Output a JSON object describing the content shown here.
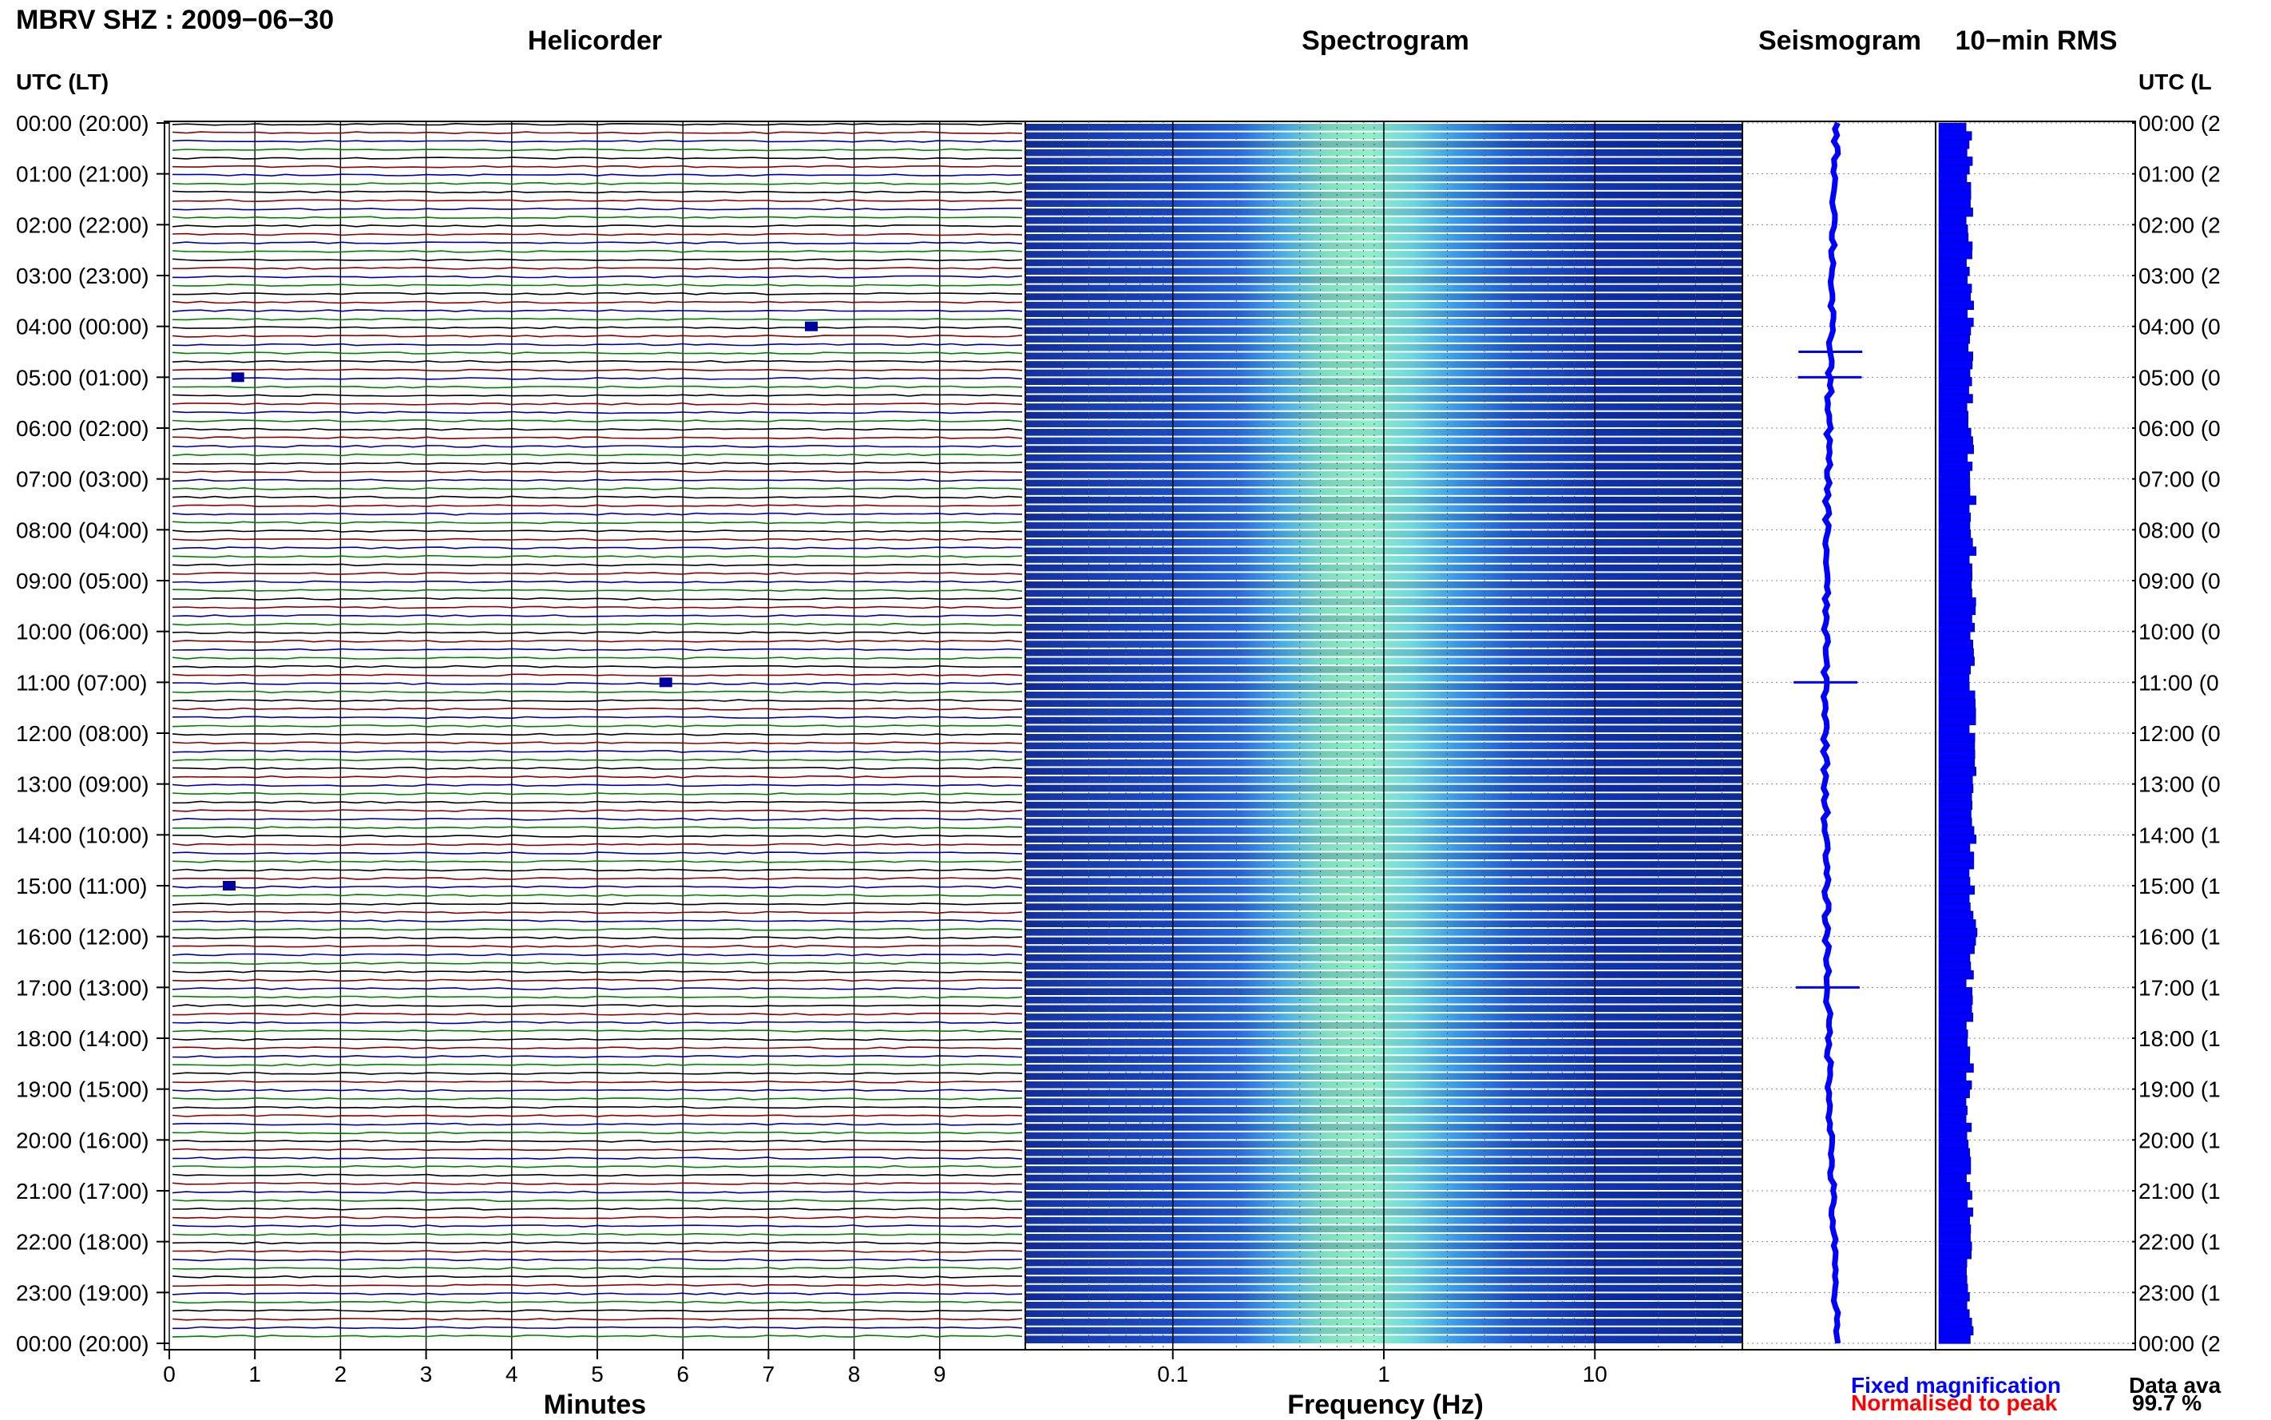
{
  "header": {
    "station_title": "MBRV SHZ : 2009−06−30",
    "panel_titles": [
      "Helicorder",
      "Spectrogram",
      "Seismogram",
      "10−min RMS"
    ]
  },
  "time_axis": {
    "left_header": "UTC (LT)",
    "right_header": "UTC (L",
    "left_labels": [
      "00:00 (20:00)",
      "01:00 (21:00)",
      "02:00 (22:00)",
      "03:00 (23:00)",
      "04:00 (00:00)",
      "05:00 (01:00)",
      "06:00 (02:00)",
      "07:00 (03:00)",
      "08:00 (04:00)",
      "09:00 (05:00)",
      "10:00 (06:00)",
      "11:00 (07:00)",
      "12:00 (08:00)",
      "13:00 (09:00)",
      "14:00 (10:00)",
      "15:00 (11:00)",
      "16:00 (12:00)",
      "17:00 (13:00)",
      "18:00 (14:00)",
      "19:00 (15:00)",
      "20:00 (16:00)",
      "21:00 (17:00)",
      "22:00 (18:00)",
      "23:00 (19:00)",
      "00:00 (20:00)"
    ],
    "right_labels": [
      "00:00 (2",
      "01:00 (2",
      "02:00 (2",
      "03:00 (2",
      "04:00 (0",
      "05:00 (0",
      "06:00 (0",
      "07:00 (0",
      "08:00 (0",
      "09:00 (0",
      "10:00 (0",
      "11:00 (0",
      "12:00 (0",
      "13:00 (0",
      "14:00 (1",
      "15:00 (1",
      "16:00 (1",
      "17:00 (1",
      "18:00 (1",
      "19:00 (1",
      "20:00 (1",
      "21:00 (1",
      "22:00 (1",
      "23:00 (1",
      "00:00 (2"
    ]
  },
  "footer": {
    "x_title_minutes": "Minutes",
    "x_title_frequency": "Frequency (Hz)",
    "legend_fixed": "Fixed magnification",
    "legend_normalised": "Normalised to peak",
    "data_availability_label": "Data ava",
    "data_availability_value": "99.7 %"
  },
  "colors": {
    "helicorder_traces": [
      "#000000",
      "#8b0000",
      "#0000a0",
      "#008000"
    ],
    "fixed_magnification": "#0000ff",
    "normalised_to_peak": "#ff0000",
    "spectrogram_low": "#0a1a8a",
    "spectrogram_high": "#7fe0b0"
  },
  "chart_data": [
    {
      "type": "line",
      "title": "Helicorder",
      "xlabel": "Minutes",
      "x_ticks": [
        "0",
        "1",
        "2",
        "3",
        "4",
        "5",
        "6",
        "7",
        "8",
        "9"
      ],
      "xlim": [
        0,
        10
      ],
      "rows_per_hour": 6,
      "hours": 24,
      "trace_colors_cycle": [
        "black",
        "dark red",
        "dark blue",
        "green"
      ],
      "events": [
        {
          "hour": 5,
          "minute": 0.8,
          "label": ""
        },
        {
          "hour": 4,
          "minute": 7.5,
          "label": ""
        },
        {
          "hour": 11,
          "minute": 5.8,
          "label": ""
        },
        {
          "hour": 15,
          "minute": 0.7,
          "label": ""
        }
      ]
    },
    {
      "type": "heatmap",
      "title": "Spectrogram",
      "xlabel": "Frequency (Hz)",
      "x_scale": "log",
      "x_ticks": [
        "0.1",
        "1",
        "10"
      ],
      "xlim": [
        0.02,
        50
      ],
      "peak_band_hz": [
        0.3,
        3
      ],
      "peak_center_hz": 0.9
    },
    {
      "type": "line",
      "title": "Seismogram",
      "events_hours": [
        4.5,
        5.0,
        11.0,
        17.0
      ]
    },
    {
      "type": "bar",
      "title": "10−min RMS",
      "orientation": "horizontal",
      "rows": 144
    }
  ]
}
